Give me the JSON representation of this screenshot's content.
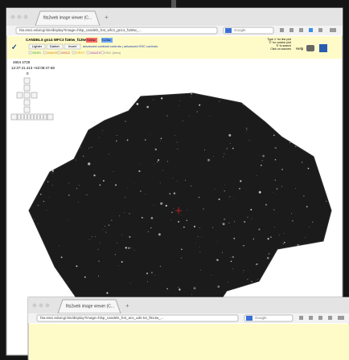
{
  "windows": [
    {
      "tab_title": "fits2web image viewer (C...",
      "url": "hla.stsci.edu/cgi-bin/display?image=hlsp_candels_hst_wfc3_gn14_f160w_...",
      "search": "Google",
      "header": {
        "title": "CANDELS gn14 WFC3 f160w_f125w",
        "filter_red": "f160w",
        "filter_blue": "f125w",
        "buttons": [
          "Lighter",
          "Darker",
          "Invert"
        ],
        "links": "advanced contrast controls | advanced HSC controls",
        "catalogs": [
          "SDSS",
          "2MASS",
          "GSC2",
          "FIRST",
          "GALEX",
          "HSC (beta)"
        ],
        "hint": [
          "Type 'c' for line plot",
          "'C' for column plot",
          "'S' to search",
          "Click on sources"
        ],
        "help": "Help"
      },
      "pixel": "4904 4729",
      "coords": "12:37:41.413 +62:08:47.68",
      "zoom": "0"
    },
    {
      "tab_title": "fits2web image viewer (C...",
      "url": "hla.stsci.edu/cgi-bin/display?image=hlsp_candels_hst_acs_uds-tot_f814w_...",
      "search": "Google"
    }
  ]
}
